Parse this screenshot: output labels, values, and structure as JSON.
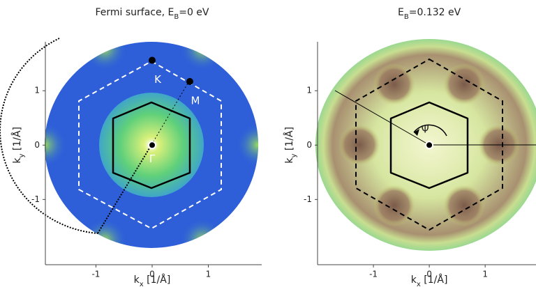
{
  "chart_data": [
    {
      "type": "heatmap",
      "title_parts": [
        "Fermi surface, E",
        "B",
        "=0 eV"
      ],
      "xlabel_parts": [
        "k",
        "x",
        " [1/Å]"
      ],
      "ylabel_parts": [
        "k",
        "y",
        " [1/Å]"
      ],
      "xlim": [
        -1.9,
        1.95
      ],
      "ylim": [
        -2.2,
        1.9
      ],
      "xticks": [
        -1,
        0,
        1
      ],
      "yticks": [
        -1,
        0,
        1
      ],
      "annotations": [
        {
          "text": "K",
          "x": 0,
          "y": 1.56
        },
        {
          "text": "M",
          "x": 0.67,
          "y": 1.17
        },
        {
          "text": "Γ",
          "x": 0,
          "y": 0
        }
      ]
    },
    {
      "type": "heatmap",
      "title_parts": [
        "E",
        "B",
        "=0.132 eV"
      ],
      "xlabel_parts": [
        "k",
        "x",
        " [1/Å]"
      ],
      "ylabel_parts": [
        "k",
        "y",
        " [1/Å]"
      ],
      "xlim": [
        -2.0,
        1.91
      ],
      "ylim": [
        -2.2,
        1.9
      ],
      "xticks": [
        -1,
        0,
        1
      ],
      "yticks": [
        -1,
        0,
        1
      ],
      "annotations": [
        {
          "text": "Ψ",
          "x": 0,
          "y": 0
        }
      ]
    }
  ]
}
